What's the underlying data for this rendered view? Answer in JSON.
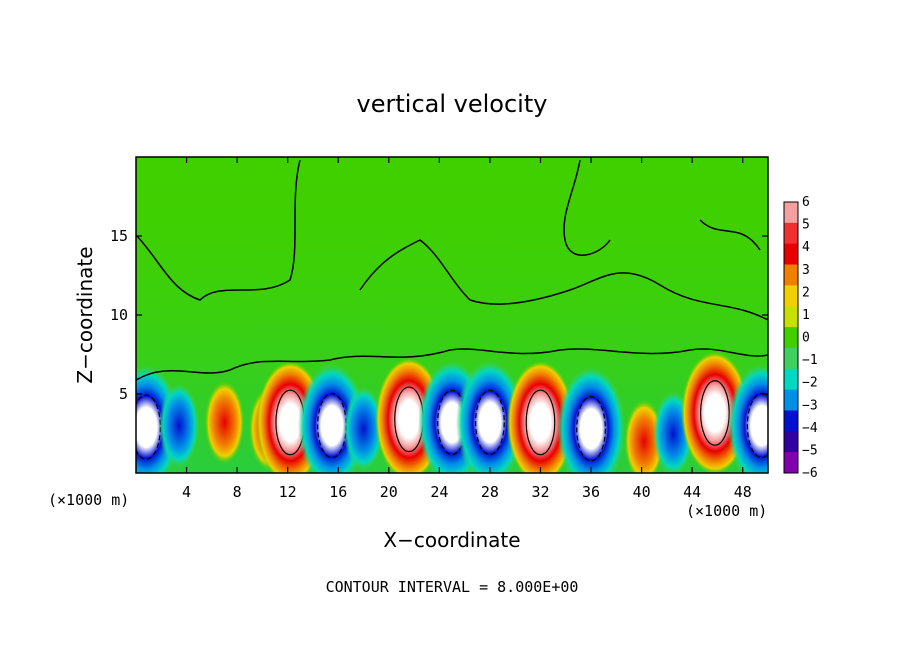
{
  "chart_data": {
    "type": "heatmap",
    "title": "vertical velocity",
    "xlabel": "X−coordinate",
    "ylabel": "Z−coordinate",
    "x_unit_left": "(×1000 m)",
    "x_unit_right": "(×1000 m)",
    "footer": "CONTOUR INTERVAL = 8.000E+00",
    "xlim": [
      0,
      50
    ],
    "ylim": [
      0,
      20
    ],
    "xticks": [
      4,
      8,
      12,
      16,
      20,
      24,
      28,
      32,
      36,
      40,
      44,
      48
    ],
    "yticks": [
      5,
      10,
      15
    ],
    "colorbar": {
      "min": -6,
      "max": 6,
      "labels": [
        "6",
        "5",
        "4",
        "3",
        "2",
        "1",
        "0",
        "−1",
        "−2",
        "−3",
        "−4",
        "−5",
        "−6"
      ],
      "colors": [
        "#f4a0a0",
        "#f03030",
        "#e80000",
        "#f08000",
        "#f0d000",
        "#c8e000",
        "#40d000",
        "#40d060",
        "#00d8c0",
        "#0090e8",
        "#0010d0",
        "#3000a0",
        "#8000b0"
      ]
    },
    "cells": [
      {
        "x": 0.8,
        "z": 2.9,
        "w": -12
      },
      {
        "x": 3.4,
        "z": 3.0,
        "w": -5
      },
      {
        "x": 7.0,
        "z": 3.2,
        "w": 3
      },
      {
        "x": 10.5,
        "z": 2.8,
        "w": 6
      },
      {
        "x": 12.2,
        "z": 3.2,
        "w": 12
      },
      {
        "x": 15.5,
        "z": 3.0,
        "w": -12
      },
      {
        "x": 18.0,
        "z": 2.8,
        "w": -4
      },
      {
        "x": 21.6,
        "z": 3.4,
        "w": 12
      },
      {
        "x": 25.0,
        "z": 3.2,
        "w": -12
      },
      {
        "x": 28.0,
        "z": 3.2,
        "w": -12
      },
      {
        "x": 32.0,
        "z": 3.2,
        "w": 12
      },
      {
        "x": 36.0,
        "z": 2.8,
        "w": -12
      },
      {
        "x": 40.2,
        "z": 2.0,
        "w": 5
      },
      {
        "x": 42.5,
        "z": 2.5,
        "w": -4
      },
      {
        "x": 45.8,
        "z": 3.8,
        "w": 10
      },
      {
        "x": 49.5,
        "z": 3.0,
        "w": -12
      }
    ]
  }
}
